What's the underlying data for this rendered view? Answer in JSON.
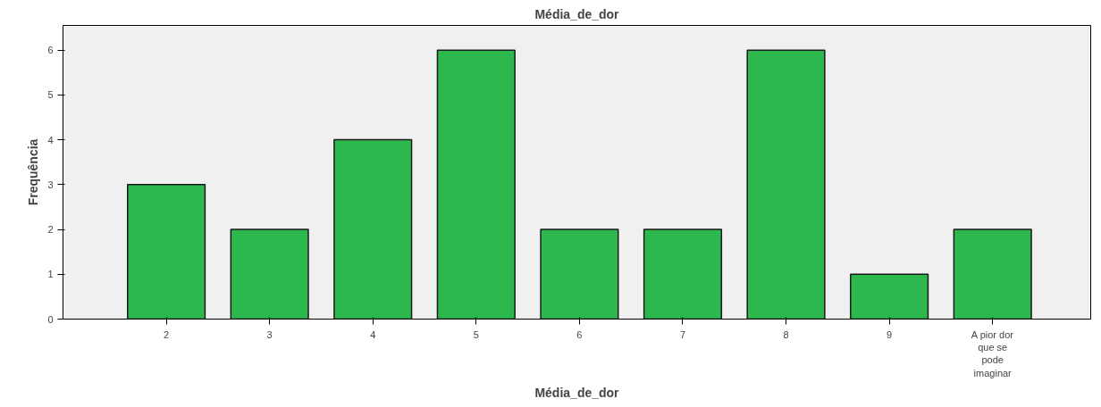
{
  "chart_data": {
    "type": "bar",
    "title": "Média_de_dor",
    "xlabel": "Média_de_dor",
    "ylabel": "Frequência",
    "categories": [
      "2",
      "3",
      "4",
      "5",
      "6",
      "7",
      "8",
      "9",
      "A pior dor que se pode imaginar"
    ],
    "values": [
      3,
      2,
      4,
      6,
      2,
      2,
      6,
      1,
      2
    ],
    "color": "#2db84d",
    "ylim": [
      0,
      6.55
    ],
    "yticks": [
      0,
      1,
      2,
      3,
      4,
      5,
      6
    ],
    "grid": false
  }
}
